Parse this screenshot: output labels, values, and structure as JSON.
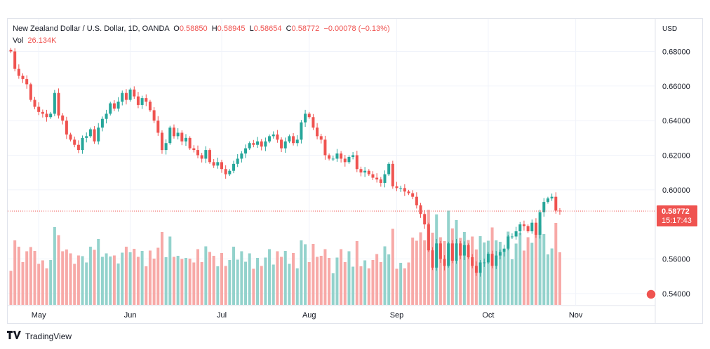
{
  "legend": {
    "symbol": "New Zealand Dollar / U.S. Dollar, 1D, OANDA",
    "o_label": "O",
    "o_val": "0.58850",
    "h_label": "H",
    "h_val": "0.58945",
    "l_label": "L",
    "l_val": "0.58654",
    "c_label": "C",
    "c_val": "0.58772",
    "change": "−0.00078 (−0.13%)",
    "vol_label": "Vol",
    "vol_val": "26.134K"
  },
  "footer": {
    "brand": "TradingView",
    "logo_icon": "tradingview-logo-icon"
  },
  "colors": {
    "up": "#26a69a",
    "down": "#ef5350",
    "vol_up": "#93d2cc",
    "vol_down": "#f7a9a7",
    "grid": "#f0f3fa",
    "axis_text": "#131722"
  },
  "chart_data": {
    "type": "candlestick",
    "title": "New Zealand Dollar / U.S. Dollar, 1D, OANDA",
    "currency_label": "USD",
    "y_ticks": [
      "0.68000",
      "0.66000",
      "0.64000",
      "0.62000",
      "0.60000",
      "0.56000",
      "0.54000"
    ],
    "y_tick_values": [
      0.68,
      0.66,
      0.64,
      0.62,
      0.6,
      0.56,
      0.54
    ],
    "ylim": [
      0.5355,
      0.6895
    ],
    "x_labels": [
      {
        "label": "May",
        "index": 7
      },
      {
        "label": "Jun",
        "index": 30
      },
      {
        "label": "Jul",
        "index": 53
      },
      {
        "label": "Aug",
        "index": 75
      },
      {
        "label": "Sep",
        "index": 97
      },
      {
        "label": "Oct",
        "index": 120
      },
      {
        "label": "Nov",
        "index": 142
      }
    ],
    "last_price": "0.58772",
    "last_value": 0.58772,
    "countdown": "15:17:43",
    "grid": true,
    "closes": [
      0.68,
      0.67,
      0.666,
      0.664,
      0.661,
      0.652,
      0.648,
      0.645,
      0.644,
      0.642,
      0.644,
      0.656,
      0.643,
      0.64,
      0.632,
      0.629,
      0.626,
      0.623,
      0.63,
      0.631,
      0.635,
      0.628,
      0.636,
      0.641,
      0.644,
      0.65,
      0.647,
      0.651,
      0.656,
      0.652,
      0.658,
      0.654,
      0.649,
      0.653,
      0.651,
      0.646,
      0.64,
      0.633,
      0.623,
      0.627,
      0.636,
      0.631,
      0.633,
      0.628,
      0.63,
      0.624,
      0.623,
      0.62,
      0.618,
      0.623,
      0.616,
      0.614,
      0.616,
      0.612,
      0.609,
      0.611,
      0.615,
      0.618,
      0.621,
      0.624,
      0.627,
      0.626,
      0.628,
      0.625,
      0.628,
      0.631,
      0.632,
      0.629,
      0.624,
      0.628,
      0.631,
      0.627,
      0.629,
      0.639,
      0.644,
      0.642,
      0.636,
      0.631,
      0.629,
      0.62,
      0.618,
      0.618,
      0.621,
      0.618,
      0.616,
      0.619,
      0.62,
      0.612,
      0.61,
      0.611,
      0.609,
      0.607,
      0.606,
      0.604,
      0.609,
      0.615,
      0.602,
      0.601,
      0.601,
      0.599,
      0.598,
      0.596,
      0.591,
      0.586,
      0.58,
      0.565,
      0.555,
      0.569,
      0.56,
      0.556,
      0.569,
      0.559,
      0.569,
      0.562,
      0.568,
      0.561,
      0.556,
      0.552,
      0.558,
      0.558,
      0.563,
      0.556,
      0.562,
      0.564,
      0.566,
      0.573,
      0.573,
      0.576,
      0.58,
      0.579,
      0.576,
      0.581,
      0.574,
      0.587,
      0.593,
      0.595,
      0.596,
      0.588,
      0.58772
    ]
  }
}
